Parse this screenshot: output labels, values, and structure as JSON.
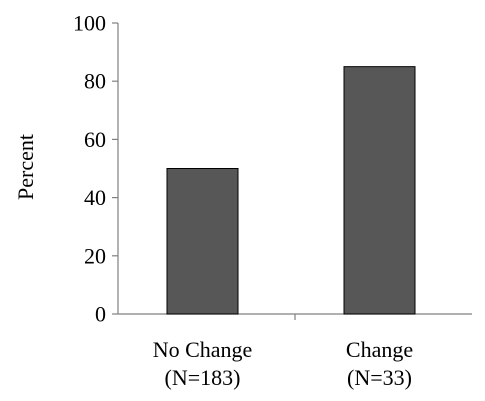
{
  "chart_data": {
    "type": "bar",
    "title": "",
    "xlabel": "",
    "ylabel": "Percent",
    "categories": [
      [
        "No Change",
        "(N=183)"
      ],
      [
        "Change",
        "(N=33)"
      ]
    ],
    "values": [
      50,
      85
    ],
    "ylim": [
      0,
      100
    ],
    "yticks": [
      "0",
      "20",
      "40",
      "60",
      "80",
      "100"
    ],
    "grid": false,
    "legend": "none",
    "bar_color": "#575757",
    "bar_edge_color": "#000000",
    "axis_color": "#808080"
  }
}
